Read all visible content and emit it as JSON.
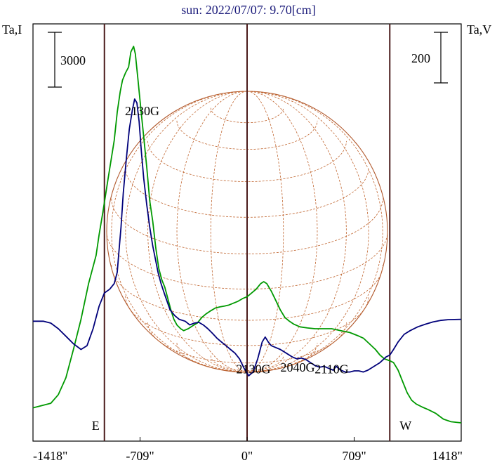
{
  "chart_data": {
    "type": "line",
    "title": "sun: 2022/07/07: 9.70[cm]",
    "left_axis_label": "Ta,I",
    "right_axis_label": "Ta,V",
    "left_scale_bar": "3000",
    "right_scale_bar": "200",
    "x_ticks": [
      {
        "value": -1418,
        "label": "-1418\""
      },
      {
        "value": -709,
        "label": "-709\""
      },
      {
        "value": 0,
        "label": "0\""
      },
      {
        "value": 709,
        "label": "709\""
      },
      {
        "value": 1418,
        "label": "1418\""
      }
    ],
    "xlim": [
      -1418,
      1418
    ],
    "vertical_markers": [
      {
        "x": -945,
        "label": "E"
      },
      {
        "x": 0,
        "label": ""
      },
      {
        "x": 945,
        "label": "W"
      }
    ],
    "region_labels": [
      {
        "text": "2130G",
        "x": -695,
        "y": 0.828
      },
      {
        "text": "2130G",
        "x": 42,
        "y": 0.143
      },
      {
        "text": "2040G",
        "x": 335,
        "y": 0.147
      },
      {
        "text": "2110G",
        "x": 560,
        "y": 0.143
      }
    ],
    "series": [
      {
        "id": "stokes-i",
        "color": "#009900",
        "points": [
          [
            -1418,
            0.04
          ],
          [
            -1300,
            0.052
          ],
          [
            -1250,
            0.075
          ],
          [
            -1200,
            0.12
          ],
          [
            -1150,
            0.195
          ],
          [
            -1100,
            0.275
          ],
          [
            -1050,
            0.37
          ],
          [
            -1000,
            0.445
          ],
          [
            -980,
            0.5
          ],
          [
            -955,
            0.56
          ],
          [
            -920,
            0.65
          ],
          [
            -880,
            0.75
          ],
          [
            -860,
            0.825
          ],
          [
            -840,
            0.88
          ],
          [
            -825,
            0.91
          ],
          [
            -805,
            0.93
          ],
          [
            -785,
            0.945
          ],
          [
            -770,
            0.985
          ],
          [
            -752,
            1.0
          ],
          [
            -740,
            0.98
          ],
          [
            -725,
            0.92
          ],
          [
            -700,
            0.82
          ],
          [
            -685,
            0.76
          ],
          [
            -665,
            0.68
          ],
          [
            -645,
            0.59
          ],
          [
            -625,
            0.535
          ],
          [
            -605,
            0.465
          ],
          [
            -585,
            0.41
          ],
          [
            -565,
            0.38
          ],
          [
            -545,
            0.36
          ],
          [
            -525,
            0.33
          ],
          [
            -505,
            0.3
          ],
          [
            -485,
            0.275
          ],
          [
            -465,
            0.26
          ],
          [
            -440,
            0.25
          ],
          [
            -420,
            0.245
          ],
          [
            -390,
            0.25
          ],
          [
            -360,
            0.258
          ],
          [
            -330,
            0.265
          ],
          [
            -300,
            0.28
          ],
          [
            -270,
            0.29
          ],
          [
            -240,
            0.298
          ],
          [
            -210,
            0.305
          ],
          [
            -180,
            0.308
          ],
          [
            -150,
            0.31
          ],
          [
            -120,
            0.313
          ],
          [
            -90,
            0.318
          ],
          [
            -60,
            0.323
          ],
          [
            -30,
            0.33
          ],
          [
            0,
            0.335
          ],
          [
            30,
            0.345
          ],
          [
            60,
            0.355
          ],
          [
            90,
            0.37
          ],
          [
            110,
            0.375
          ],
          [
            130,
            0.37
          ],
          [
            160,
            0.35
          ],
          [
            190,
            0.325
          ],
          [
            220,
            0.3
          ],
          [
            250,
            0.28
          ],
          [
            280,
            0.27
          ],
          [
            310,
            0.262
          ],
          [
            350,
            0.255
          ],
          [
            400,
            0.252
          ],
          [
            450,
            0.25
          ],
          [
            500,
            0.25
          ],
          [
            560,
            0.25
          ],
          [
            620,
            0.245
          ],
          [
            680,
            0.24
          ],
          [
            730,
            0.232
          ],
          [
            770,
            0.225
          ],
          [
            810,
            0.21
          ],
          [
            850,
            0.195
          ],
          [
            880,
            0.18
          ],
          [
            910,
            0.17
          ],
          [
            945,
            0.165
          ],
          [
            970,
            0.16
          ],
          [
            1000,
            0.14
          ],
          [
            1030,
            0.11
          ],
          [
            1060,
            0.08
          ],
          [
            1090,
            0.06
          ],
          [
            1120,
            0.05
          ],
          [
            1160,
            0.042
          ],
          [
            1200,
            0.035
          ],
          [
            1250,
            0.025
          ],
          [
            1300,
            0.01
          ],
          [
            1350,
            0.003
          ],
          [
            1418,
            0.0
          ]
        ]
      },
      {
        "id": "stokes-v",
        "color": "#00007a",
        "points": [
          [
            -1418,
            0.27
          ],
          [
            -1350,
            0.27
          ],
          [
            -1300,
            0.265
          ],
          [
            -1250,
            0.25
          ],
          [
            -1200,
            0.23
          ],
          [
            -1150,
            0.21
          ],
          [
            -1100,
            0.195
          ],
          [
            -1060,
            0.205
          ],
          [
            -1020,
            0.25
          ],
          [
            -980,
            0.31
          ],
          [
            -945,
            0.345
          ],
          [
            -910,
            0.355
          ],
          [
            -880,
            0.37
          ],
          [
            -860,
            0.4
          ],
          [
            -850,
            0.45
          ],
          [
            -835,
            0.52
          ],
          [
            -820,
            0.61
          ],
          [
            -800,
            0.7
          ],
          [
            -780,
            0.78
          ],
          [
            -760,
            0.83
          ],
          [
            -745,
            0.86
          ],
          [
            -730,
            0.85
          ],
          [
            -715,
            0.8
          ],
          [
            -700,
            0.72
          ],
          [
            -685,
            0.65
          ],
          [
            -665,
            0.58
          ],
          [
            -645,
            0.52
          ],
          [
            -625,
            0.47
          ],
          [
            -605,
            0.43
          ],
          [
            -590,
            0.4
          ],
          [
            -570,
            0.37
          ],
          [
            -545,
            0.34
          ],
          [
            -510,
            0.3
          ],
          [
            -480,
            0.285
          ],
          [
            -450,
            0.275
          ],
          [
            -410,
            0.27
          ],
          [
            -380,
            0.26
          ],
          [
            -350,
            0.265
          ],
          [
            -320,
            0.267
          ],
          [
            -290,
            0.26
          ],
          [
            -260,
            0.25
          ],
          [
            -230,
            0.238
          ],
          [
            -200,
            0.225
          ],
          [
            -170,
            0.215
          ],
          [
            -140,
            0.205
          ],
          [
            -110,
            0.195
          ],
          [
            -80,
            0.185
          ],
          [
            -50,
            0.17
          ],
          [
            -20,
            0.145
          ],
          [
            10,
            0.125
          ],
          [
            40,
            0.135
          ],
          [
            70,
            0.17
          ],
          [
            100,
            0.215
          ],
          [
            120,
            0.228
          ],
          [
            140,
            0.215
          ],
          [
            160,
            0.205
          ],
          [
            190,
            0.2
          ],
          [
            220,
            0.195
          ],
          [
            260,
            0.185
          ],
          [
            300,
            0.175
          ],
          [
            330,
            0.17
          ],
          [
            360,
            0.172
          ],
          [
            390,
            0.168
          ],
          [
            420,
            0.16
          ],
          [
            450,
            0.152
          ],
          [
            480,
            0.148
          ],
          [
            510,
            0.15
          ],
          [
            540,
            0.145
          ],
          [
            570,
            0.14
          ],
          [
            590,
            0.15
          ],
          [
            620,
            0.14
          ],
          [
            650,
            0.135
          ],
          [
            680,
            0.135
          ],
          [
            710,
            0.138
          ],
          [
            740,
            0.138
          ],
          [
            770,
            0.135
          ],
          [
            800,
            0.14
          ],
          [
            840,
            0.15
          ],
          [
            880,
            0.16
          ],
          [
            920,
            0.175
          ],
          [
            945,
            0.18
          ],
          [
            970,
            0.195
          ],
          [
            1000,
            0.215
          ],
          [
            1040,
            0.235
          ],
          [
            1080,
            0.245
          ],
          [
            1130,
            0.255
          ],
          [
            1180,
            0.262
          ],
          [
            1230,
            0.268
          ],
          [
            1280,
            0.272
          ],
          [
            1330,
            0.274
          ],
          [
            1418,
            0.275
          ]
        ]
      }
    ]
  }
}
